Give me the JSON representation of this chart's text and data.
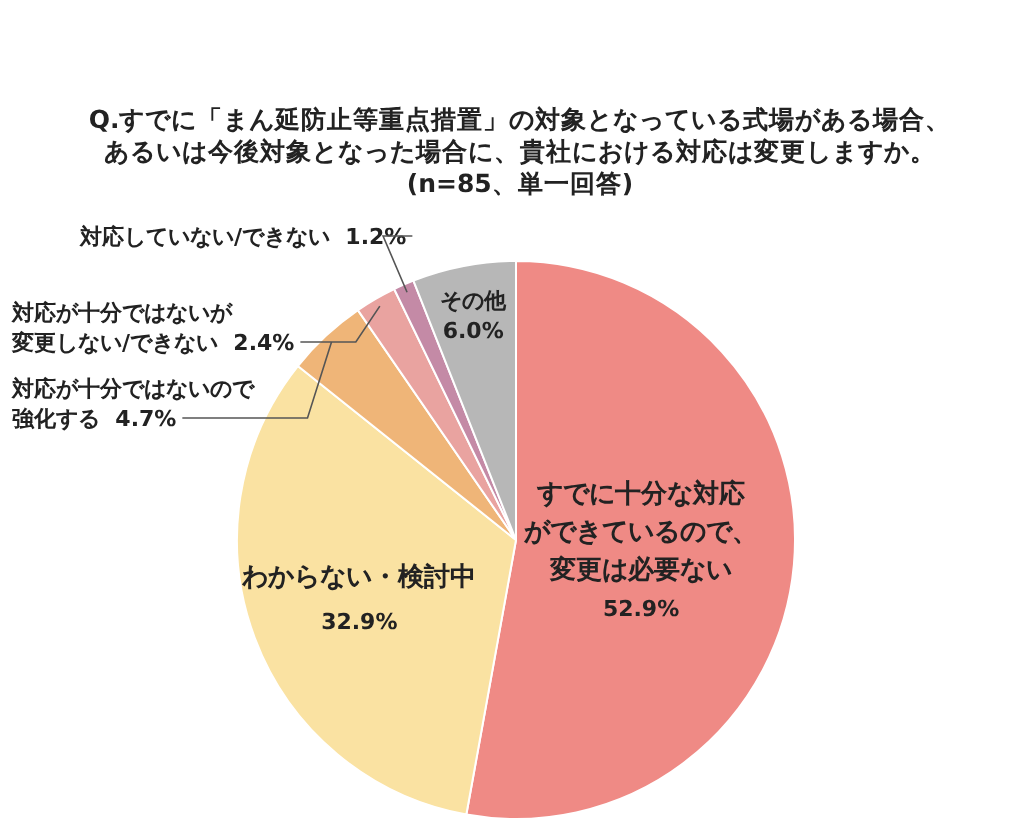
{
  "chart_data": {
    "type": "pie",
    "title": "Q.すでに「まん延防止等重点措置」の対象となっている式場がある場合、あるいは今後対象となった場合に、貴社における対応は変更しますか。(n=85、単一回答)",
    "categories": [
      "すでに十分な対応ができているので、変更は必要ない",
      "わからない・検討中",
      "対応が十分ではないので強化する",
      "対応が十分ではないが変更しない/できない",
      "対応していない/できない",
      "その他"
    ],
    "values": [
      52.9,
      32.9,
      4.7,
      2.4,
      1.2,
      6.0
    ],
    "colors": [
      "#ef8a85",
      "#fae2a2",
      "#efb578",
      "#e9a3a0",
      "#c48aa6",
      "#b7b7b7"
    ],
    "value_labels": [
      "52.9%",
      "32.9%",
      "4.7%",
      "2.4%",
      "1.2%",
      "6.0%"
    ],
    "legend": false
  }
}
